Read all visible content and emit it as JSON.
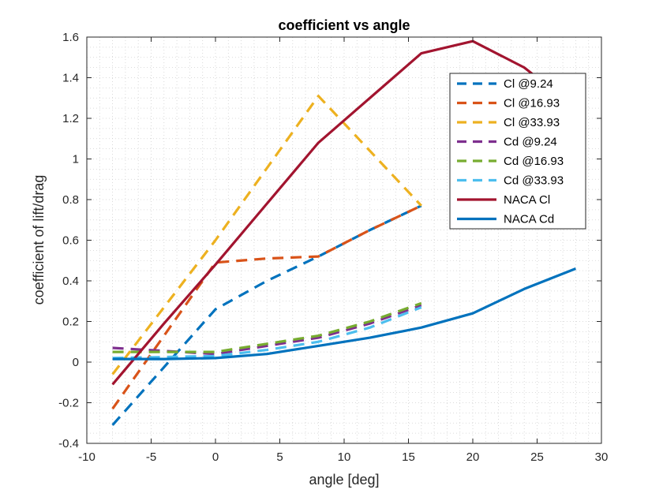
{
  "chart_data": {
    "type": "line",
    "title": "coefficient vs angle",
    "xlabel": "angle [deg]",
    "ylabel": "coefficient of lift/drag",
    "xlim": [
      -10,
      30
    ],
    "ylim": [
      -0.4,
      1.6
    ],
    "xticks": [
      "-10",
      "-5",
      "0",
      "5",
      "10",
      "15",
      "20",
      "25",
      "30"
    ],
    "yticks": [
      "-0.4",
      "-0.2",
      "0",
      "0.2",
      "0.4",
      "0.6",
      "0.8",
      "1",
      "1.2",
      "1.4",
      "1.6"
    ],
    "grid": "minor dotted",
    "legend_position": "top-right",
    "series": [
      {
        "name": "Cl @9.24",
        "style": "dashed",
        "color": "#0072BD",
        "x": [
          -8,
          0,
          4,
          8,
          12,
          16
        ],
        "y": [
          -0.31,
          0.26,
          0.4,
          0.52,
          0.65,
          0.77
        ]
      },
      {
        "name": "Cl @16.93",
        "style": "dashed",
        "color": "#D95319",
        "x": [
          -8,
          0,
          4,
          8,
          12,
          16
        ],
        "y": [
          -0.23,
          0.49,
          0.51,
          0.52,
          0.65,
          0.77
        ]
      },
      {
        "name": "Cl @33.93",
        "style": "dashed",
        "color": "#EDB120",
        "x": [
          -8,
          0,
          8,
          16
        ],
        "y": [
          -0.06,
          0.6,
          1.31,
          0.77
        ]
      },
      {
        "name": "Cd @9.24",
        "style": "dashed",
        "color": "#7E2F8E",
        "x": [
          -8,
          0,
          4,
          8,
          12,
          16
        ],
        "y": [
          0.07,
          0.04,
          0.08,
          0.12,
          0.19,
          0.28
        ]
      },
      {
        "name": "Cd @16.93",
        "style": "dashed",
        "color": "#77AC30",
        "x": [
          -8,
          0,
          4,
          8,
          12,
          16
        ],
        "y": [
          0.05,
          0.05,
          0.09,
          0.13,
          0.2,
          0.29
        ]
      },
      {
        "name": "Cd @33.93",
        "style": "dashed",
        "color": "#4DBEEE",
        "x": [
          -8,
          0,
          4,
          8,
          12,
          16
        ],
        "y": [
          0.02,
          0.03,
          0.06,
          0.1,
          0.17,
          0.27
        ]
      },
      {
        "name": "NACA Cl",
        "style": "solid",
        "color": "#A2142F",
        "x": [
          -8,
          -4,
          0,
          4,
          8,
          12,
          16,
          20,
          24,
          28
        ],
        "y": [
          -0.11,
          0.19,
          0.48,
          0.78,
          1.08,
          1.3,
          1.52,
          1.58,
          1.45,
          1.25
        ]
      },
      {
        "name": "NACA Cd",
        "style": "solid",
        "color": "#0072BD",
        "x": [
          -8,
          -4,
          0,
          4,
          8,
          12,
          16,
          20,
          24,
          28
        ],
        "y": [
          0.015,
          0.015,
          0.02,
          0.04,
          0.08,
          0.12,
          0.17,
          0.24,
          0.36,
          0.46
        ]
      }
    ]
  }
}
